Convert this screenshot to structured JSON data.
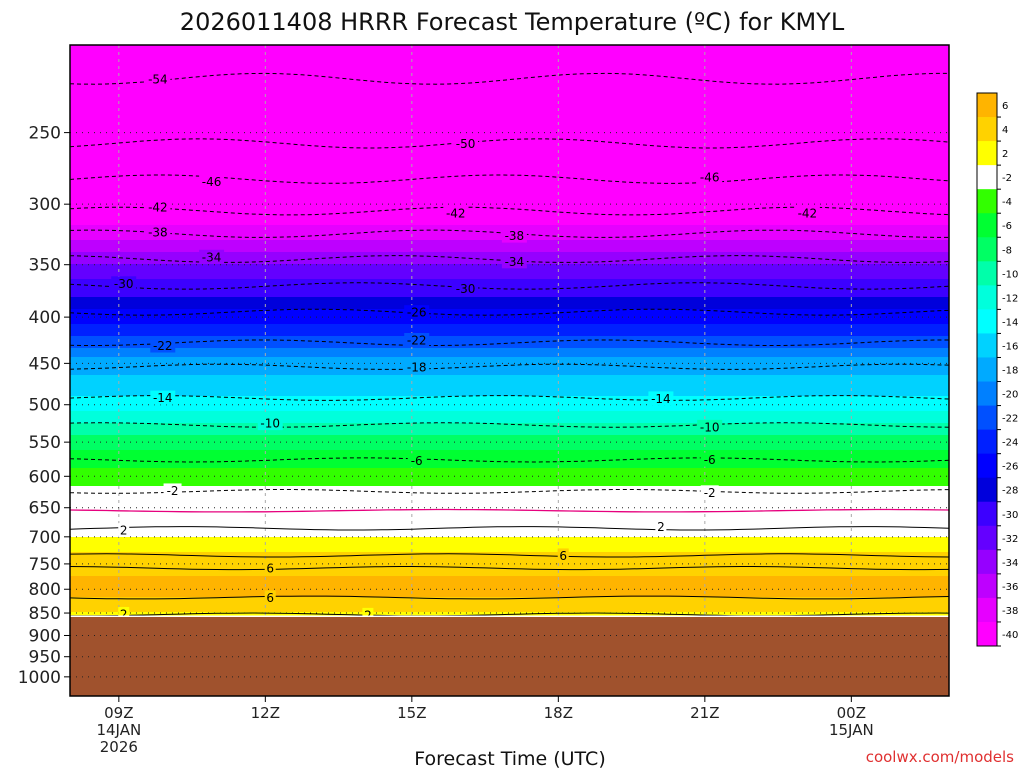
{
  "chart_data": {
    "type": "heatmap",
    "title": "2026011408 HRRR Forecast Temperature (ºC) for KMYL",
    "xlabel": "Forecast Time (UTC)",
    "ylabel": "",
    "watermark": "coolwx.com/models",
    "x_ticks": [
      {
        "hour": 9,
        "lines": [
          "09Z",
          "14JAN",
          "2026"
        ]
      },
      {
        "hour": 12,
        "lines": [
          "12Z"
        ]
      },
      {
        "hour": 15,
        "lines": [
          "15Z"
        ]
      },
      {
        "hour": 18,
        "lines": [
          "18Z"
        ]
      },
      {
        "hour": 21,
        "lines": [
          "21Z"
        ]
      },
      {
        "hour": 24,
        "lines": [
          "00Z",
          "15JAN"
        ]
      }
    ],
    "xlim_hours": [
      8,
      26
    ],
    "y_ticks": [
      250,
      300,
      350,
      400,
      450,
      500,
      550,
      600,
      650,
      700,
      750,
      800,
      850,
      900,
      950,
      1000
    ],
    "ylim_hpa": [
      200,
      1050
    ],
    "ground_level_hpa": 857,
    "colorbar": {
      "labels": [
        "6",
        "4",
        "2",
        "-2",
        "-4",
        "-6",
        "-8",
        "-10",
        "-12",
        "-14",
        "-16",
        "-18",
        "-20",
        "-22",
        "-24",
        "-26",
        "-28",
        "-30",
        "-32",
        "-34",
        "-36",
        "-38",
        "-40"
      ],
      "colors": [
        "#ffb400",
        "#ffd200",
        "#ffff00",
        "#ffffff",
        "#32ff00",
        "#00ff32",
        "#00ff64",
        "#00ffaa",
        "#00ffdc",
        "#00ffff",
        "#00d2ff",
        "#00aaff",
        "#0080ff",
        "#0050ff",
        "#0020ff",
        "#0000ff",
        "#0000dc",
        "#3c00ff",
        "#6400ff",
        "#9600ff",
        "#be00ff",
        "#e600ff",
        "#ff00ff"
      ]
    },
    "temperature_profile": {
      "pressure_hpa": [
        200,
        250,
        300,
        350,
        400,
        450,
        500,
        550,
        600,
        650,
        700,
        750,
        800,
        850,
        857
      ],
      "temperature_c": [
        -58,
        -50,
        -42,
        -33,
        -26,
        -18,
        -14,
        -8,
        -4,
        -1,
        2,
        4,
        6,
        3,
        2
      ]
    },
    "contour_labels": [
      {
        "text": "-54",
        "hour": 9.8,
        "hpa": 218
      },
      {
        "text": "-50",
        "hour": 16.1,
        "hpa": 257
      },
      {
        "text": "-46",
        "hour": 10.9,
        "hpa": 283
      },
      {
        "text": "-46",
        "hour": 21.1,
        "hpa": 280
      },
      {
        "text": "-42",
        "hour": 9.8,
        "hpa": 302
      },
      {
        "text": "-42",
        "hour": 15.9,
        "hpa": 307
      },
      {
        "text": "-42",
        "hour": 23.1,
        "hpa": 307
      },
      {
        "text": "-38",
        "hour": 9.8,
        "hpa": 322
      },
      {
        "text": "-38",
        "hour": 17.1,
        "hpa": 325
      },
      {
        "text": "-34",
        "hour": 10.9,
        "hpa": 343
      },
      {
        "text": "-34",
        "hour": 17.1,
        "hpa": 347
      },
      {
        "text": "-30",
        "hour": 9.1,
        "hpa": 367
      },
      {
        "text": "-30",
        "hour": 16.1,
        "hpa": 372
      },
      {
        "text": "-26",
        "hour": 15.1,
        "hpa": 395
      },
      {
        "text": "-22",
        "hour": 9.9,
        "hpa": 430
      },
      {
        "text": "-22",
        "hour": 15.1,
        "hpa": 424
      },
      {
        "text": "-18",
        "hour": 15.1,
        "hpa": 454
      },
      {
        "text": "-14",
        "hour": 9.9,
        "hpa": 491
      },
      {
        "text": "-14",
        "hour": 20.1,
        "hpa": 492
      },
      {
        "text": "-10",
        "hour": 12.1,
        "hpa": 524
      },
      {
        "text": "-10",
        "hour": 21.1,
        "hpa": 529
      },
      {
        "text": "-6",
        "hour": 15.1,
        "hpa": 576
      },
      {
        "text": "-6",
        "hour": 21.1,
        "hpa": 575
      },
      {
        "text": "-2",
        "hour": 10.1,
        "hpa": 622
      },
      {
        "text": "-2",
        "hour": 21.1,
        "hpa": 625
      },
      {
        "text": "2",
        "hour": 9.1,
        "hpa": 688
      },
      {
        "text": "2",
        "hour": 20.1,
        "hpa": 682
      },
      {
        "text": "6",
        "hour": 18.1,
        "hpa": 734
      },
      {
        "text": "6",
        "hour": 12.1,
        "hpa": 758
      },
      {
        "text": "6",
        "hour": 12.1,
        "hpa": 817
      },
      {
        "text": "2",
        "hour": 9.1,
        "hpa": 852
      },
      {
        "text": "2",
        "hour": 14.1,
        "hpa": 854
      }
    ]
  }
}
